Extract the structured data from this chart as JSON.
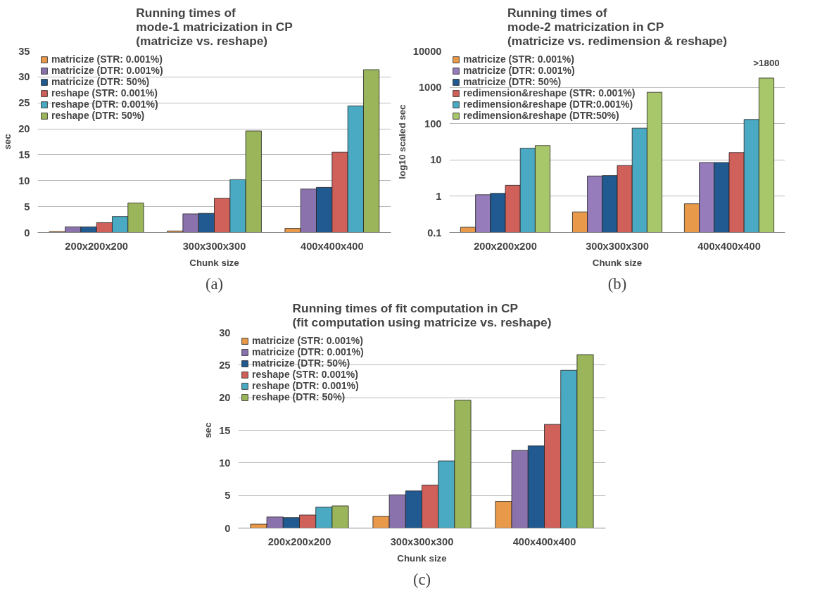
{
  "chart_data": [
    {
      "type": "bar",
      "title": "Running times of\nmode-1 matricization in CP\n(matricize vs. reshape)",
      "xlabel": "Chunk size",
      "ylabel": "sec",
      "categories": [
        "200x200x200",
        "300x300x300",
        "400x400x400"
      ],
      "ylim": [
        0,
        35
      ],
      "yticks": [
        0,
        5,
        10,
        15,
        20,
        25,
        30,
        35
      ],
      "grid": "y",
      "legend": "top left",
      "annotations": [
        "(a)"
      ],
      "series": [
        {
          "name": "matricize (STR: 0.001%)",
          "color": "#e8994a",
          "values": [
            0.2,
            0.3,
            0.8
          ]
        },
        {
          "name": "matricize (DTR: 0.001%)",
          "color": "#8a72ad",
          "values": [
            1.1,
            3.6,
            8.4
          ]
        },
        {
          "name": "matricize (DTR: 50%)",
          "color": "#215a90",
          "values": [
            1.1,
            3.7,
            8.7
          ]
        },
        {
          "name": "reshape (STR: 0.001%)",
          "color": "#d0605a",
          "values": [
            1.9,
            6.6,
            15.5
          ]
        },
        {
          "name": "reshape (DTR: 0.001%)",
          "color": "#4aa9c3",
          "values": [
            3.1,
            10.2,
            24.4
          ]
        },
        {
          "name": "reshape (DTR: 50%)",
          "color": "#9bb65a",
          "values": [
            5.7,
            19.6,
            31.4
          ]
        }
      ]
    },
    {
      "type": "bar",
      "title": "Running times of\nmode-2 matricization in CP\n(matricize vs. redimension & reshape)",
      "xlabel": "Chunk size",
      "ylabel": "log10 scaled sec",
      "log": "y",
      "categories": [
        "200x200x200",
        "300x300x300",
        "400x400x400"
      ],
      "ylim": [
        0.1,
        10000
      ],
      "yticks": [
        0.1,
        1,
        10,
        100,
        1000,
        10000
      ],
      "grid": "y",
      "legend": "top left",
      "annotations": [
        ">1800",
        "(b)"
      ],
      "series": [
        {
          "name": "matricize (STR: 0.001%)",
          "color": "#e8994a",
          "values": [
            0.14,
            0.37,
            0.62
          ]
        },
        {
          "name": "matricize (DTR: 0.001%)",
          "color": "#967cba",
          "values": [
            1.1,
            3.6,
            8.5
          ]
        },
        {
          "name": "matricize (DTR: 50%)",
          "color": "#215a90",
          "values": [
            1.2,
            3.7,
            8.5
          ]
        },
        {
          "name": "redimension&reshape (STR: 0.001%)",
          "color": "#d0605a",
          "values": [
            2.0,
            7,
            16
          ]
        },
        {
          "name": "redimension&reshape (DTR:0.001%)",
          "color": "#4aa9c3",
          "values": [
            21,
            75,
            130
          ]
        },
        {
          "name": "redimension&reshape (DTR:50%)",
          "color": "#a8c66a",
          "values": [
            25,
            730,
            1800
          ]
        }
      ]
    },
    {
      "type": "bar",
      "title": "Running times of fit computation in CP\n(fit computation using matricize vs. reshape)",
      "xlabel": "Chunk size",
      "ylabel": "sec",
      "categories": [
        "200x200x200",
        "300x300x300",
        "400x400x400"
      ],
      "ylim": [
        0,
        30
      ],
      "yticks": [
        0,
        5,
        10,
        15,
        20,
        25,
        30
      ],
      "grid": "y",
      "legend": "top left",
      "annotations": [
        "(c)"
      ],
      "series": [
        {
          "name": "matricize (STR: 0.001%)",
          "color": "#e8994a",
          "values": [
            0.6,
            1.8,
            4.1
          ]
        },
        {
          "name": "matricize (DTR: 0.001%)",
          "color": "#8a72ad",
          "values": [
            1.7,
            5.1,
            11.9
          ]
        },
        {
          "name": "matricize (DTR: 50%)",
          "color": "#215a90",
          "values": [
            1.6,
            5.7,
            12.6
          ]
        },
        {
          "name": "reshape (STR: 0.001%)",
          "color": "#d0605a",
          "values": [
            2.0,
            6.6,
            15.9
          ]
        },
        {
          "name": "reshape (DTR: 0.001%)",
          "color": "#4aa9c3",
          "values": [
            3.2,
            10.3,
            24.2
          ]
        },
        {
          "name": "reshape (DTR: 50%)",
          "color": "#9bb65a",
          "values": [
            3.4,
            19.6,
            26.6
          ]
        }
      ]
    }
  ]
}
